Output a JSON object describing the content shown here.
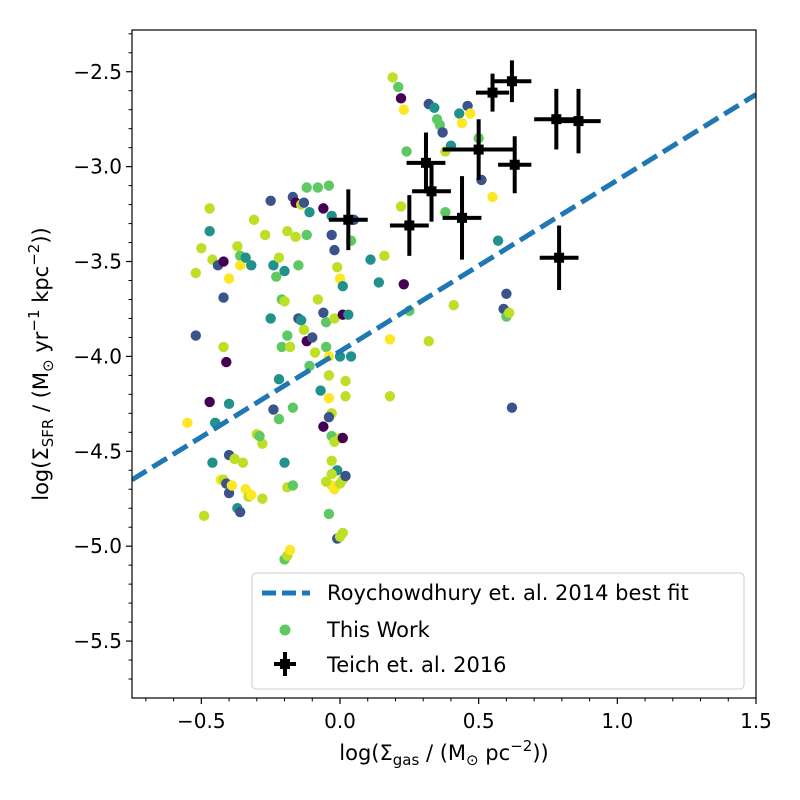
{
  "chart_data": {
    "type": "scatter",
    "xlabel": {
      "pre": "log(Σ",
      "sub": "gas",
      "mid": " / (M",
      "sun": "⊙",
      "unit": " pc",
      "sup": "−2",
      "post": "))"
    },
    "ylabel": {
      "pre": "log(Σ",
      "sub": "SFR",
      "mid": " / (M",
      "sun": "⊙",
      "unit1": " yr",
      "sup1": "−1",
      "unit2": " kpc",
      "sup2": "−2",
      "post": "))"
    },
    "xlim": [
      -0.75,
      1.5
    ],
    "ylim": [
      -5.8,
      -2.28
    ],
    "x_ticks": [
      -0.5,
      0.0,
      0.5,
      1.0,
      1.5
    ],
    "x_tick_labels": [
      "−0.5",
      "0.0",
      "0.5",
      "1.0",
      "1.5"
    ],
    "y_ticks": [
      -2.5,
      -3.0,
      -3.5,
      -4.0,
      -4.5,
      -5.0,
      -5.5
    ],
    "y_tick_labels": [
      "−2.5",
      "−3.0",
      "−3.5",
      "−4.0",
      "−4.5",
      "−5.0",
      "−5.5"
    ],
    "legend_position": "lower-right",
    "colors": {
      "fit_line": "#1f77b4",
      "this_work_legend": "#5ec962",
      "teich": "#000000",
      "palette": [
        "#440154",
        "#3b528b",
        "#21918c",
        "#5ec962",
        "#bddf26",
        "#fde725"
      ]
    },
    "series": [
      {
        "name": "Roychowdhury et. al. 2014 best fit",
        "kind": "line",
        "x": [
          -0.75,
          1.5
        ],
        "y": [
          -4.65,
          -2.62
        ]
      },
      {
        "name": "This Work",
        "kind": "scatter",
        "points": [
          [
            -0.52,
            -3.56,
            4
          ],
          [
            -0.5,
            -3.43,
            4
          ],
          [
            -0.47,
            -3.22,
            4
          ],
          [
            -0.47,
            -3.34,
            2
          ],
          [
            -0.46,
            -3.49,
            4
          ],
          [
            -0.44,
            -3.52,
            1
          ],
          [
            -0.42,
            -3.5,
            0
          ],
          [
            -0.42,
            -3.69,
            1
          ],
          [
            -0.4,
            -3.59,
            5
          ],
          [
            -0.37,
            -3.42,
            4
          ],
          [
            -0.36,
            -3.47,
            3
          ],
          [
            -0.36,
            -3.52,
            5
          ],
          [
            -0.34,
            -3.48,
            2
          ],
          [
            -0.32,
            -3.52,
            2
          ],
          [
            -0.31,
            -3.28,
            4
          ],
          [
            -0.27,
            -3.36,
            4
          ],
          [
            -0.25,
            -3.18,
            1
          ],
          [
            -0.24,
            -3.52,
            2
          ],
          [
            -0.23,
            -3.58,
            3
          ],
          [
            -0.22,
            -3.48,
            4
          ],
          [
            -0.21,
            -3.7,
            3
          ],
          [
            -0.2,
            -3.55,
            2
          ],
          [
            -0.19,
            -3.34,
            4
          ],
          [
            -0.17,
            -3.16,
            1
          ],
          [
            -0.16,
            -3.19,
            0
          ],
          [
            -0.16,
            -3.37,
            4
          ],
          [
            -0.15,
            -3.52,
            3
          ],
          [
            -0.14,
            -3.2,
            4
          ],
          [
            -0.13,
            -3.19,
            1
          ],
          [
            -0.12,
            -3.11,
            3
          ],
          [
            -0.12,
            -3.36,
            3
          ],
          [
            -0.11,
            -3.24,
            2
          ],
          [
            -0.08,
            -3.11,
            3
          ],
          [
            -0.06,
            -3.22,
            0
          ],
          [
            -0.04,
            -3.1,
            3
          ],
          [
            -0.03,
            -3.26,
            2
          ],
          [
            -0.03,
            -3.36,
            1
          ],
          [
            -0.02,
            -3.44,
            1
          ],
          [
            -0.01,
            -3.53,
            4
          ],
          [
            0.0,
            -3.59,
            5
          ],
          [
            0.01,
            -3.63,
            2
          ],
          [
            0.03,
            -3.28,
            4
          ],
          [
            0.04,
            -3.39,
            3
          ],
          [
            0.05,
            -3.28,
            1
          ],
          [
            -0.52,
            -3.89,
            1
          ],
          [
            -0.47,
            -4.24,
            0
          ],
          [
            -0.45,
            -4.35,
            2
          ],
          [
            -0.42,
            -3.95,
            4
          ],
          [
            -0.41,
            -4.03,
            0
          ],
          [
            -0.4,
            -4.25,
            2
          ],
          [
            -0.3,
            -4.41,
            4
          ],
          [
            -0.28,
            -4.46,
            4
          ],
          [
            -0.25,
            -3.8,
            2
          ],
          [
            -0.24,
            -4.28,
            1
          ],
          [
            -0.22,
            -4.33,
            3
          ],
          [
            -0.22,
            -4.12,
            2
          ],
          [
            -0.21,
            -3.95,
            3
          ],
          [
            -0.2,
            -3.71,
            4
          ],
          [
            -0.19,
            -3.89,
            3
          ],
          [
            -0.18,
            -3.95,
            4
          ],
          [
            -0.17,
            -4.27,
            3
          ],
          [
            -0.15,
            -3.8,
            1
          ],
          [
            -0.14,
            -3.81,
            2
          ],
          [
            -0.13,
            -3.86,
            4
          ],
          [
            -0.12,
            -3.92,
            0
          ],
          [
            -0.11,
            -4.05,
            3
          ],
          [
            -0.1,
            -3.9,
            1
          ],
          [
            -0.09,
            -3.98,
            4
          ],
          [
            -0.08,
            -3.7,
            4
          ],
          [
            -0.07,
            -4.18,
            2
          ],
          [
            -0.06,
            -3.77,
            1
          ],
          [
            -0.05,
            -3.82,
            3
          ],
          [
            -0.05,
            -3.95,
            3
          ],
          [
            -0.04,
            -4.0,
            5
          ],
          [
            -0.04,
            -4.1,
            4
          ],
          [
            -0.04,
            -4.22,
            5
          ],
          [
            -0.03,
            -4.3,
            4
          ],
          [
            -0.03,
            -4.42,
            3
          ],
          [
            -0.03,
            -4.55,
            4
          ],
          [
            -0.03,
            -4.68,
            5
          ],
          [
            -0.02,
            -3.8,
            4
          ],
          [
            -0.02,
            -4.45,
            4
          ],
          [
            -0.01,
            -4.6,
            2
          ],
          [
            0.0,
            -4.0,
            2
          ],
          [
            0.01,
            -3.78,
            0
          ],
          [
            0.02,
            -4.13,
            4
          ],
          [
            0.02,
            -4.21,
            4
          ],
          [
            0.03,
            -3.78,
            2
          ],
          [
            0.04,
            -4.0,
            2
          ],
          [
            -0.06,
            -4.37,
            0
          ],
          [
            -0.04,
            -4.32,
            1
          ],
          [
            0.0,
            -4.43,
            4
          ],
          [
            0.01,
            -4.43,
            0
          ],
          [
            -0.55,
            -4.35,
            5
          ],
          [
            -0.49,
            -4.84,
            4
          ],
          [
            -0.46,
            -4.56,
            2
          ],
          [
            -0.43,
            -4.65,
            5
          ],
          [
            -0.42,
            -4.65,
            4
          ],
          [
            -0.41,
            -4.67,
            1
          ],
          [
            -0.4,
            -4.52,
            1
          ],
          [
            -0.4,
            -4.72,
            1
          ],
          [
            -0.39,
            -4.68,
            5
          ],
          [
            -0.38,
            -4.54,
            4
          ],
          [
            -0.37,
            -4.8,
            2
          ],
          [
            -0.36,
            -4.82,
            1
          ],
          [
            -0.35,
            -4.56,
            4
          ],
          [
            -0.34,
            -4.7,
            5
          ],
          [
            -0.33,
            -4.74,
            4
          ],
          [
            -0.32,
            -4.73,
            5
          ],
          [
            -0.29,
            -4.42,
            3
          ],
          [
            -0.28,
            -4.75,
            4
          ],
          [
            -0.2,
            -5.07,
            3
          ],
          [
            -0.19,
            -5.05,
            4
          ],
          [
            -0.19,
            -4.69,
            4
          ],
          [
            -0.18,
            -5.02,
            5
          ],
          [
            -0.17,
            -4.68,
            3
          ],
          [
            -0.2,
            -4.56,
            2
          ],
          [
            -0.05,
            -4.66,
            4
          ],
          [
            -0.04,
            -4.83,
            3
          ],
          [
            -0.03,
            -4.62,
            4
          ],
          [
            -0.02,
            -4.7,
            5
          ],
          [
            -0.01,
            -4.96,
            1
          ],
          [
            0.0,
            -4.95,
            4
          ],
          [
            0.0,
            -4.67,
            4
          ],
          [
            0.01,
            -4.65,
            4
          ],
          [
            0.01,
            -4.93,
            4
          ],
          [
            0.02,
            -4.63,
            1
          ],
          [
            0.19,
            -2.53,
            4
          ],
          [
            0.21,
            -2.58,
            3
          ],
          [
            0.22,
            -2.64,
            0
          ],
          [
            0.23,
            -2.7,
            5
          ],
          [
            0.24,
            -2.92,
            3
          ],
          [
            0.32,
            -2.67,
            1
          ],
          [
            0.34,
            -2.69,
            2
          ],
          [
            0.35,
            -2.75,
            3
          ],
          [
            0.36,
            -2.78,
            3
          ],
          [
            0.37,
            -2.82,
            1
          ],
          [
            0.38,
            -2.92,
            4
          ],
          [
            0.4,
            -2.89,
            2
          ],
          [
            0.43,
            -2.72,
            2
          ],
          [
            0.44,
            -2.77,
            5
          ],
          [
            0.46,
            -2.68,
            1
          ],
          [
            0.47,
            -2.72,
            5
          ],
          [
            0.5,
            -2.85,
            3
          ],
          [
            0.51,
            -3.07,
            1
          ],
          [
            0.55,
            -3.16,
            5
          ],
          [
            0.57,
            -3.39,
            2
          ],
          [
            0.6,
            -3.67,
            1
          ],
          [
            0.59,
            -3.75,
            1
          ],
          [
            0.6,
            -3.79,
            3
          ],
          [
            0.61,
            -3.77,
            4
          ],
          [
            0.62,
            -4.27,
            1
          ],
          [
            0.41,
            -3.73,
            4
          ],
          [
            0.22,
            -3.21,
            4
          ],
          [
            0.23,
            -3.62,
            0
          ],
          [
            0.25,
            -3.76,
            3
          ],
          [
            0.32,
            -3.92,
            4
          ],
          [
            0.18,
            -3.91,
            5
          ],
          [
            0.18,
            -4.21,
            4
          ],
          [
            0.11,
            -3.49,
            2
          ],
          [
            0.14,
            -3.61,
            2
          ],
          [
            0.16,
            -3.47,
            4
          ],
          [
            0.38,
            -3.24,
            3
          ]
        ]
      },
      {
        "name": "Teich et. al. 2016",
        "kind": "errorbar",
        "points": [
          [
            0.62,
            -2.55,
            0.07,
            0.11
          ],
          [
            0.55,
            -2.61,
            0.06,
            0.1
          ],
          [
            0.78,
            -2.75,
            0.08,
            0.16
          ],
          [
            0.86,
            -2.76,
            0.08,
            0.17
          ],
          [
            0.31,
            -2.98,
            0.07,
            0.16
          ],
          [
            0.5,
            -2.91,
            0.13,
            0.16
          ],
          [
            0.63,
            -2.99,
            0.06,
            0.15
          ],
          [
            0.33,
            -3.13,
            0.07,
            0.16
          ],
          [
            0.44,
            -3.27,
            0.07,
            0.22
          ],
          [
            0.25,
            -3.31,
            0.07,
            0.16
          ],
          [
            0.03,
            -3.28,
            0.07,
            0.16
          ],
          [
            0.79,
            -3.48,
            0.07,
            0.17
          ]
        ]
      }
    ]
  }
}
